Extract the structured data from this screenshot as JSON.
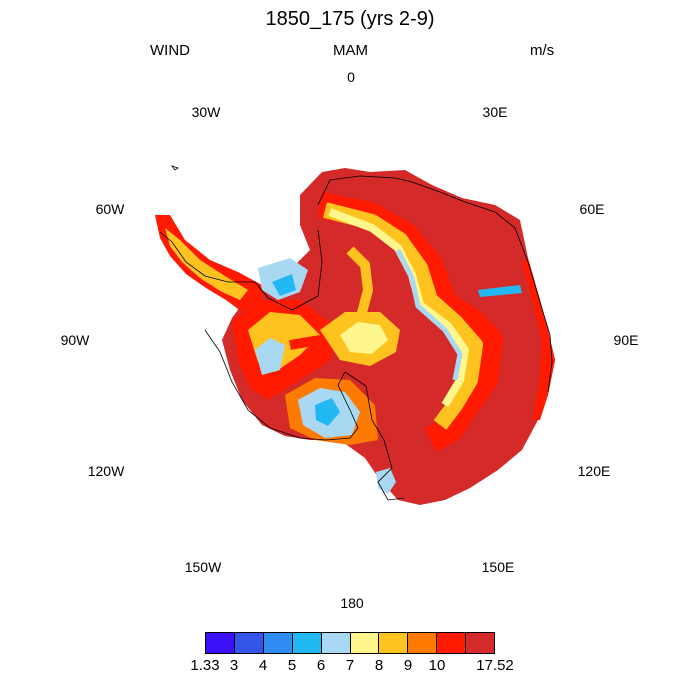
{
  "title": "1850_175 (yrs 2-9)",
  "left_label": "WIND",
  "center_label": "MAM",
  "right_label": "m/s",
  "longitude_labels": [
    "0",
    "30E",
    "60E",
    "90E",
    "120E",
    "150E",
    "180",
    "150W",
    "120W",
    "90W",
    "60W",
    "30W"
  ],
  "colorbar": {
    "colors": [
      "#3a12f5",
      "#3355e8",
      "#2f8cf2",
      "#21b8f3",
      "#a9d8f3",
      "#fff78e",
      "#ffc31f",
      "#ff7a00",
      "#ff1a00",
      "#d42a2a"
    ],
    "tick_labels": [
      "1.33",
      "3",
      "4",
      "5",
      "6",
      "7",
      "8",
      "9",
      "10",
      "17.52"
    ]
  }
}
